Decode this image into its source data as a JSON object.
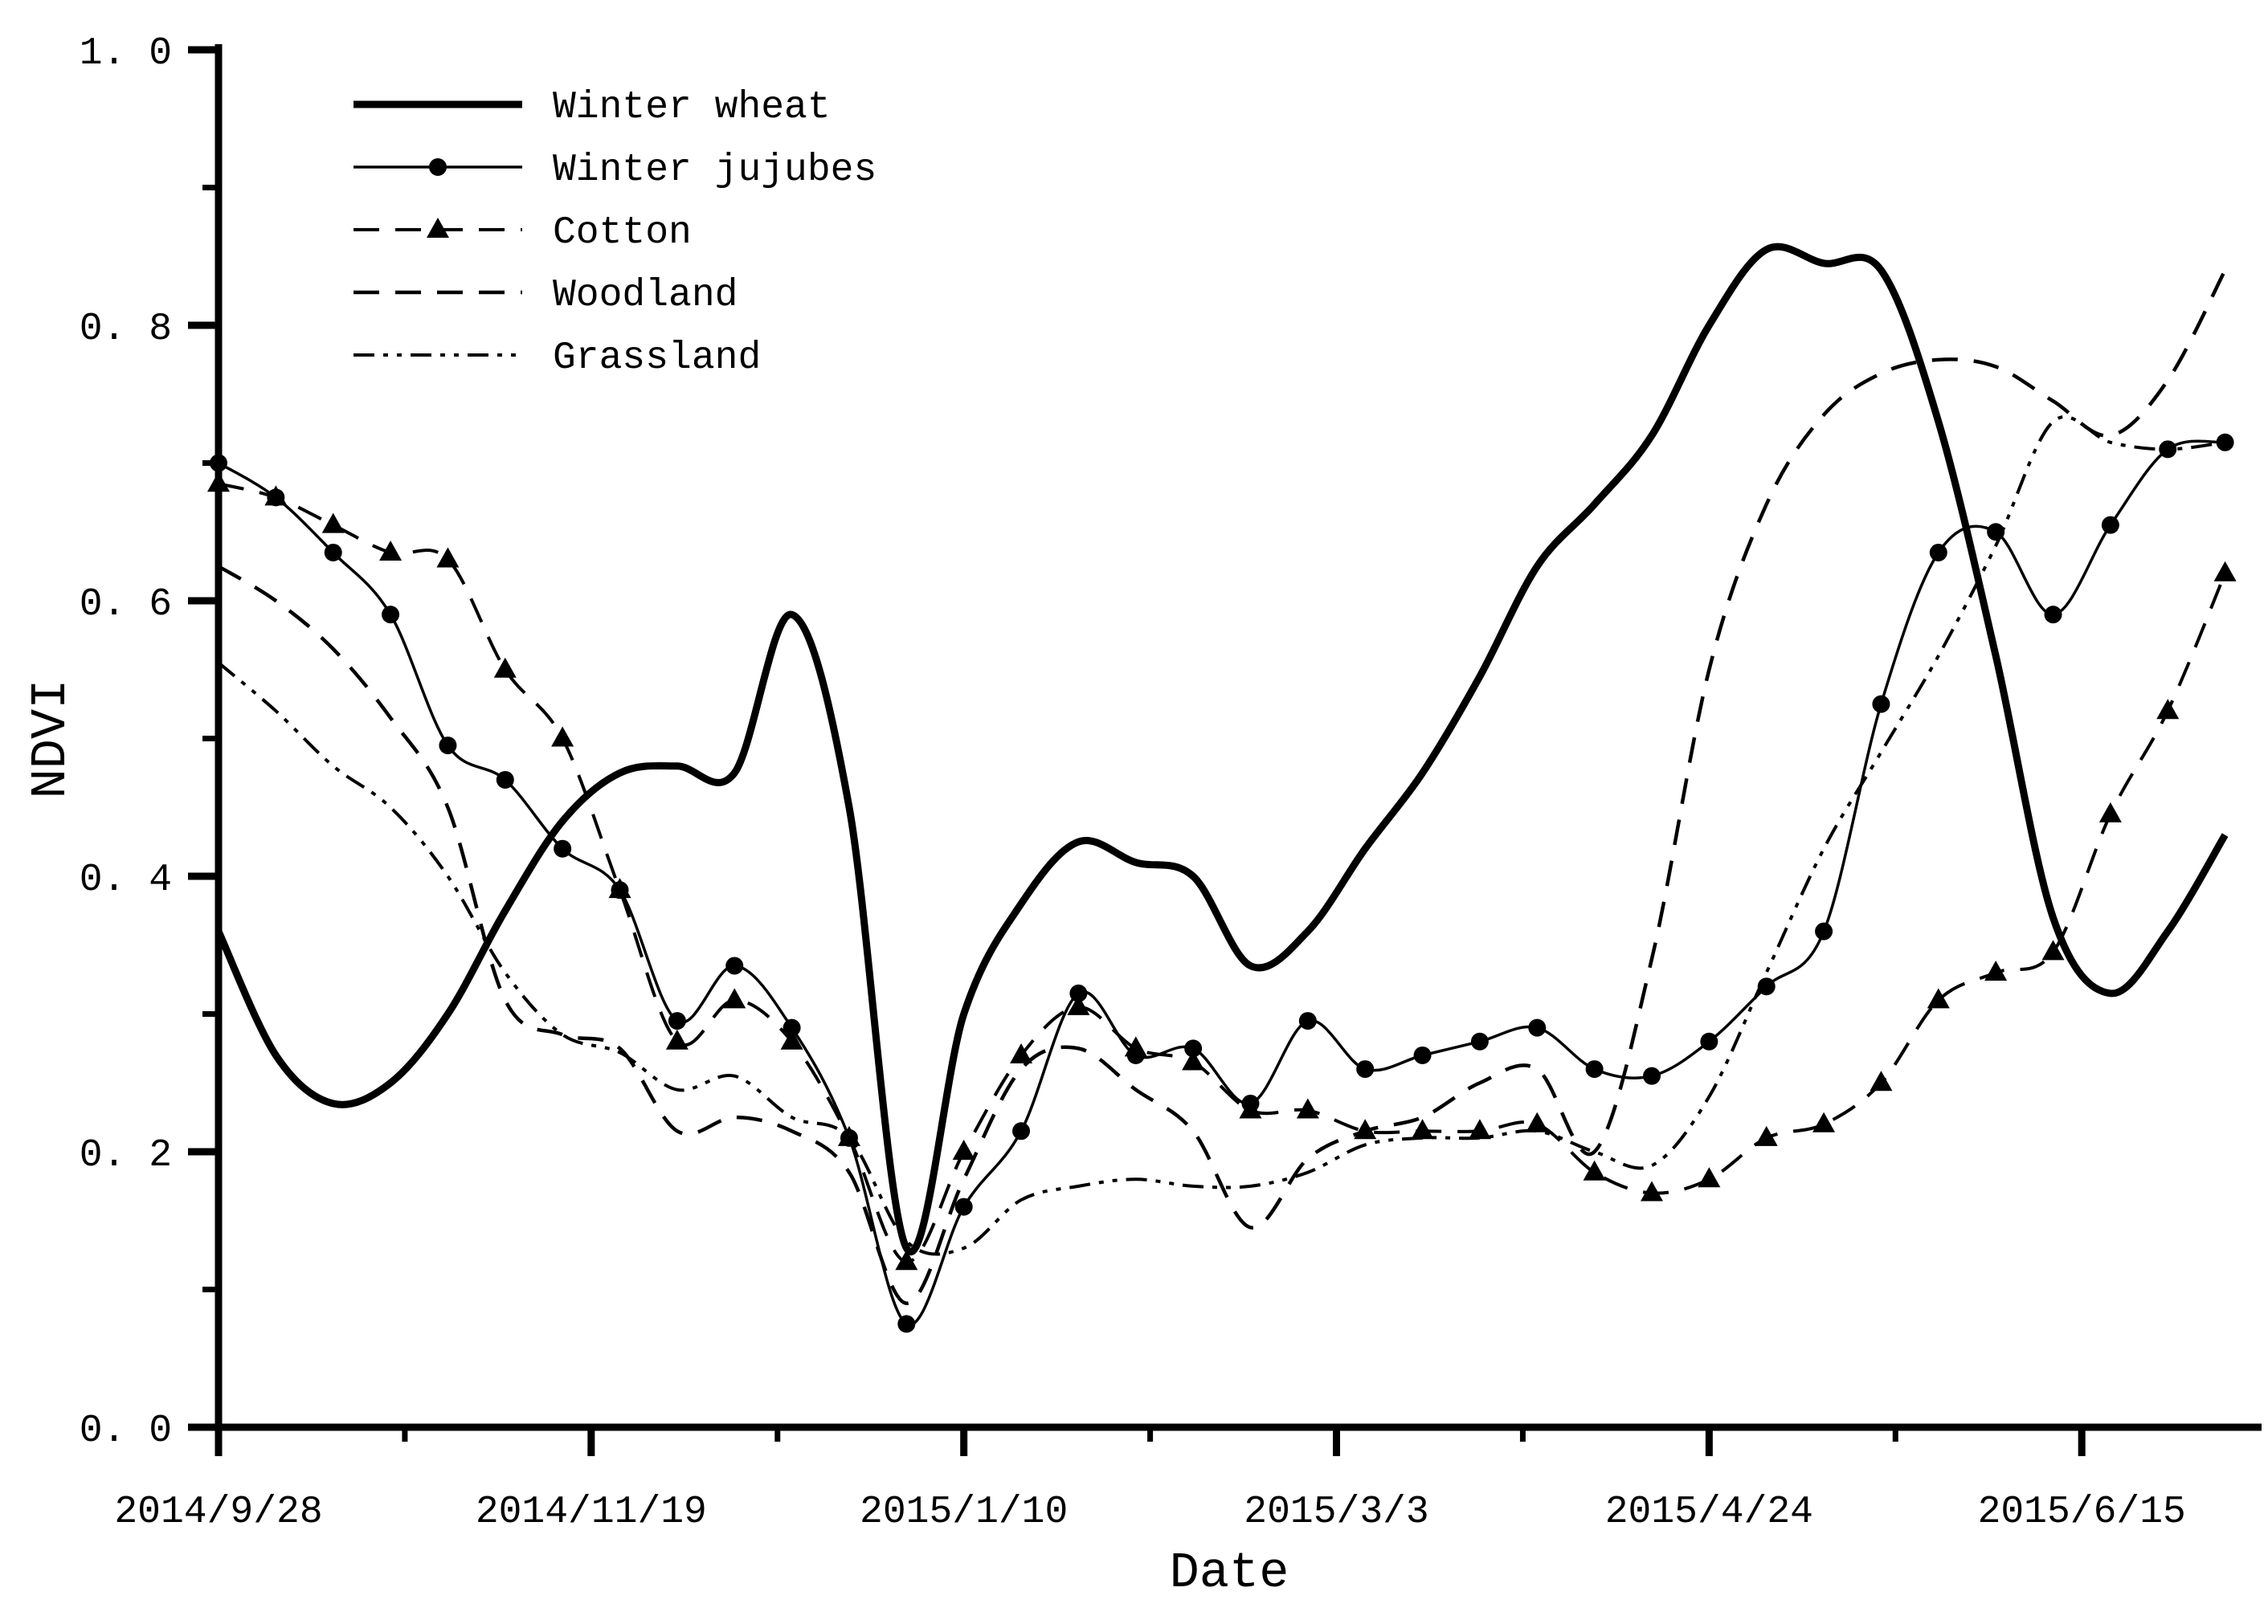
{
  "figure": {
    "background": "#ffffff",
    "ink_color": "#000000"
  },
  "chart_data": {
    "type": "line",
    "title": "",
    "xlabel": "Date",
    "ylabel": "NDVI",
    "ylim": [
      0.0,
      1.0
    ],
    "grid": false,
    "legend_position": "top-left-inside",
    "y_ticks": [
      0.0,
      0.2,
      0.4,
      0.6,
      0.8,
      1.0
    ],
    "y_tick_labels": [
      "0. 0",
      "0. 2",
      "0. 4",
      "0. 6",
      "0. 8",
      "1. 0"
    ],
    "y_minor_ticks": [
      0.1,
      0.3,
      0.5,
      0.7,
      0.9
    ],
    "x_tick_labels": [
      "2014/9/28",
      "2014/11/19",
      "2015/1/10",
      "2015/3/3",
      "2015/4/24",
      "2015/6/15"
    ],
    "x": [
      "2014/9/28",
      "2014/10/6",
      "2014/10/14",
      "2014/10/22",
      "2014/10/30",
      "2014/11/7",
      "2014/11/15",
      "2014/11/23",
      "2014/12/1",
      "2014/12/9",
      "2014/12/17",
      "2014/12/25",
      "2015/1/2",
      "2015/1/10",
      "2015/1/18",
      "2015/1/26",
      "2015/2/3",
      "2015/2/11",
      "2015/2/19",
      "2015/2/27",
      "2015/3/7",
      "2015/3/15",
      "2015/3/23",
      "2015/3/31",
      "2015/4/8",
      "2015/4/16",
      "2015/4/24",
      "2015/5/2",
      "2015/5/10",
      "2015/5/18",
      "2015/5/26",
      "2015/6/3",
      "2015/6/11",
      "2015/6/19",
      "2015/6/27",
      "2015/7/5"
    ],
    "series": [
      {
        "name": "Winter wheat",
        "line": "solid",
        "line_width": 9,
        "marker": "none",
        "values": [
          0.36,
          0.27,
          0.235,
          0.25,
          0.3,
          0.375,
          0.44,
          0.475,
          0.48,
          0.475,
          0.59,
          0.45,
          0.13,
          0.3,
          0.38,
          0.425,
          0.41,
          0.4,
          0.335,
          0.36,
          0.42,
          0.475,
          0.545,
          0.625,
          0.67,
          0.72,
          0.8,
          0.855,
          0.845,
          0.84,
          0.73,
          0.56,
          0.37,
          0.315,
          0.36,
          0.43
        ]
      },
      {
        "name": "Winter jujubes",
        "line": "solid",
        "line_width": 3.5,
        "marker": "circle",
        "values": [
          0.7,
          0.675,
          0.635,
          0.59,
          0.495,
          0.47,
          0.42,
          0.39,
          0.295,
          0.335,
          0.29,
          0.21,
          0.075,
          0.16,
          0.215,
          0.315,
          0.27,
          0.275,
          0.235,
          0.295,
          0.26,
          0.27,
          0.28,
          0.29,
          0.26,
          0.255,
          0.28,
          0.32,
          0.36,
          0.525,
          0.635,
          0.65,
          0.59,
          0.655,
          0.71,
          0.715
        ]
      },
      {
        "name": "Cotton",
        "line": "dash",
        "line_width": 4,
        "marker": "triangle",
        "values": [
          0.685,
          0.675,
          0.655,
          0.635,
          0.63,
          0.55,
          0.5,
          0.39,
          0.28,
          0.31,
          0.28,
          0.21,
          0.12,
          0.2,
          0.27,
          0.305,
          0.275,
          0.265,
          0.23,
          0.23,
          0.215,
          0.215,
          0.215,
          0.22,
          0.185,
          0.17,
          0.18,
          0.21,
          0.22,
          0.25,
          0.31,
          0.33,
          0.345,
          0.445,
          0.52,
          0.62
        ]
      },
      {
        "name": "Woodland",
        "line": "dash",
        "line_width": 4.5,
        "marker": "none",
        "values": [
          0.625,
          0.6,
          0.565,
          0.515,
          0.45,
          0.31,
          0.285,
          0.275,
          0.215,
          0.225,
          0.215,
          0.185,
          0.09,
          0.18,
          0.26,
          0.275,
          0.245,
          0.215,
          0.145,
          0.195,
          0.215,
          0.225,
          0.25,
          0.26,
          0.2,
          0.34,
          0.55,
          0.67,
          0.735,
          0.765,
          0.775,
          0.77,
          0.745,
          0.72,
          0.76,
          0.84
        ]
      },
      {
        "name": "Grassland",
        "line": "dash-dot-dot",
        "line_width": 4,
        "marker": "none",
        "values": [
          0.555,
          0.52,
          0.48,
          0.45,
          0.4,
          0.33,
          0.285,
          0.272,
          0.245,
          0.255,
          0.225,
          0.21,
          0.135,
          0.13,
          0.165,
          0.175,
          0.18,
          0.175,
          0.175,
          0.185,
          0.205,
          0.21,
          0.21,
          0.215,
          0.2,
          0.19,
          0.24,
          0.33,
          0.42,
          0.49,
          0.56,
          0.64,
          0.73,
          0.715,
          0.71,
          0.715
        ]
      }
    ]
  }
}
